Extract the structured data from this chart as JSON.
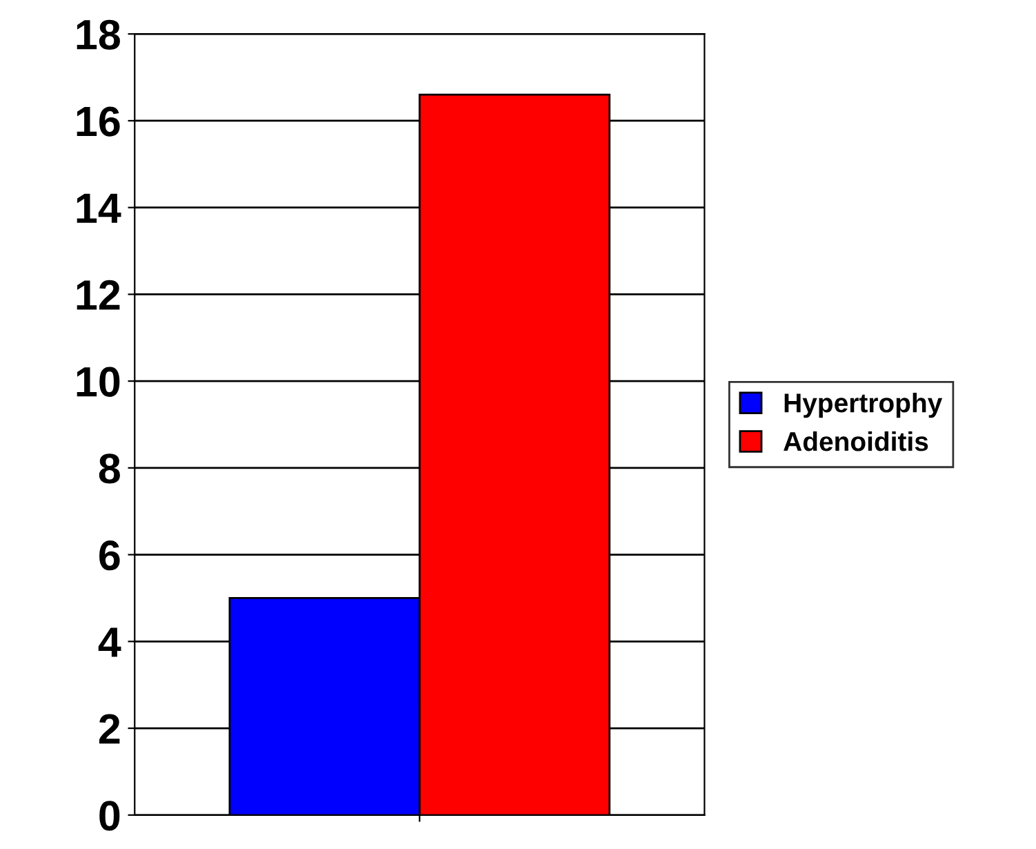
{
  "chart_data": {
    "type": "bar",
    "categories": [
      null
    ],
    "series": [
      {
        "name": "Hypertrophy",
        "color": "#0000ff",
        "values": [
          5.0
        ]
      },
      {
        "name": "Adenoiditis",
        "color": "#ff0000",
        "values": [
          16.6
        ]
      }
    ],
    "ylim": [
      0,
      18
    ],
    "yticks": [
      0,
      2,
      4,
      6,
      8,
      10,
      12,
      14,
      16,
      18
    ],
    "grid": "y",
    "legend": "right"
  }
}
